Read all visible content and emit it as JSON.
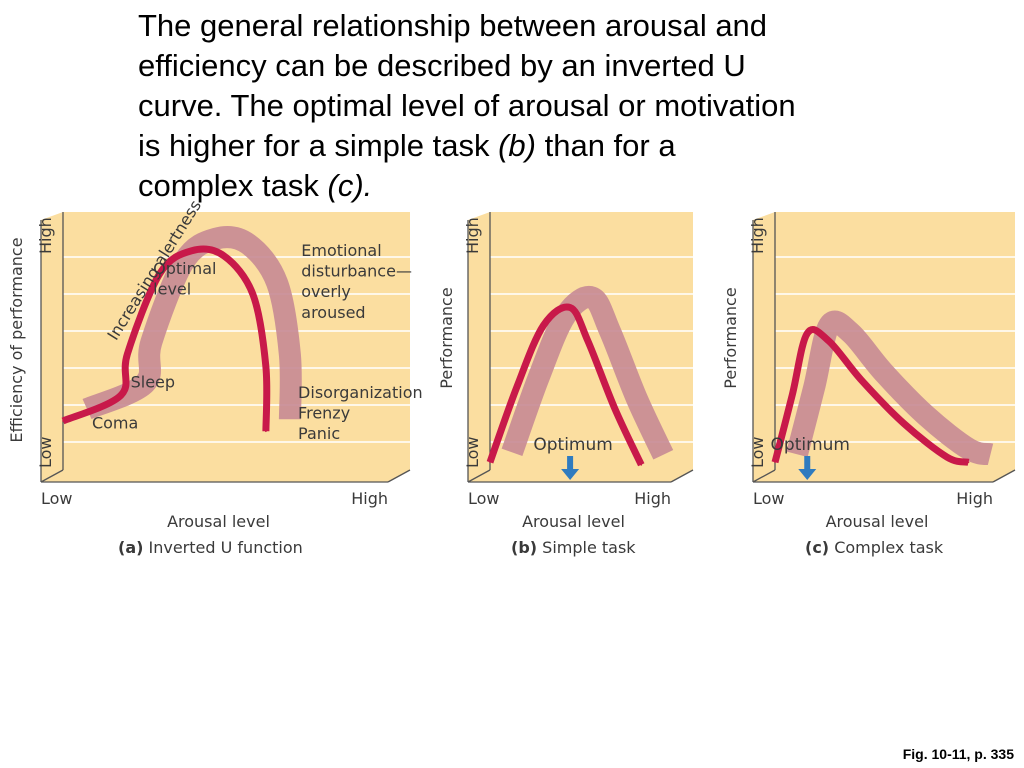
{
  "caption": {
    "part1": "The general relationship between arousal and efficiency can be described by an inverted U curve. The optimal level of arousal or motivation is higher for a simple task ",
    "em1": "(b)",
    "part2": " than for a complex task ",
    "em2": "(c)."
  },
  "figure_ref": "Fig. 10-11, p. 335",
  "colors": {
    "panel": "#fbdea0",
    "curve": "#c8194a",
    "band": "#c68a93",
    "arrow": "#2f7bbf"
  },
  "chart_data": [
    {
      "type": "line",
      "panel_letter": "(a)",
      "panel_title": "Inverted U function",
      "xlabel": "Arousal level",
      "ylabel": "Efficiency of performance",
      "x_tick_labels": [
        "Low",
        "High"
      ],
      "y_tick_labels": [
        "Low",
        "High"
      ],
      "xlim": [
        0,
        10
      ],
      "ylim": [
        0,
        10
      ],
      "grid": true,
      "series": [
        {
          "values": [
            {
              "x": 0.0,
              "y": 1.9
            },
            {
              "x": 1.8,
              "y": 2.9
            },
            {
              "x": 2.0,
              "y": 4.5
            },
            {
              "x": 3.0,
              "y": 7.6
            },
            {
              "x": 4.0,
              "y": 8.5
            },
            {
              "x": 5.0,
              "y": 8.3
            },
            {
              "x": 5.9,
              "y": 6.8
            },
            {
              "x": 6.3,
              "y": 4.0
            },
            {
              "x": 6.3,
              "y": 1.5
            }
          ]
        }
      ],
      "annotations": [
        {
          "text": "Coma",
          "x": 0.9,
          "y": 1.6
        },
        {
          "text": "Sleep",
          "x": 2.1,
          "y": 3.2
        },
        {
          "text": "Optimal",
          "x": 2.8,
          "y": 7.6
        },
        {
          "text": "level",
          "x": 2.8,
          "y": 6.8
        },
        {
          "text": "Increasing alertness",
          "x": 1.9,
          "y": 4.6
        },
        {
          "text": "Emotional",
          "x": 7.4,
          "y": 8.3
        },
        {
          "text": "disturbance—",
          "x": 7.4,
          "y": 7.5
        },
        {
          "text": "overly",
          "x": 7.4,
          "y": 6.7
        },
        {
          "text": "aroused",
          "x": 7.4,
          "y": 5.9
        },
        {
          "text": "Disorganization",
          "x": 7.3,
          "y": 2.8
        },
        {
          "text": "Frenzy",
          "x": 7.3,
          "y": 2.0
        },
        {
          "text": "Panic",
          "x": 7.3,
          "y": 1.2
        }
      ]
    },
    {
      "type": "line",
      "panel_letter": "(b)",
      "panel_title": "Simple task",
      "xlabel": "Arousal level",
      "ylabel": "Performance",
      "x_tick_labels": [
        "Low",
        "High"
      ],
      "y_tick_labels": [
        "Low",
        "High"
      ],
      "xlim": [
        0,
        10
      ],
      "ylim": [
        0,
        10
      ],
      "grid": true,
      "series": [
        {
          "values": [
            {
              "x": 0.0,
              "y": 0.3
            },
            {
              "x": 1.5,
              "y": 3.2
            },
            {
              "x": 3.0,
              "y": 5.6
            },
            {
              "x": 4.5,
              "y": 6.3
            },
            {
              "x": 5.5,
              "y": 5.0
            },
            {
              "x": 7.0,
              "y": 2.4
            },
            {
              "x": 8.5,
              "y": 0.2
            }
          ]
        }
      ],
      "optimum": {
        "label": "Optimum",
        "x": 4.5
      }
    },
    {
      "type": "line",
      "panel_letter": "(c)",
      "panel_title": "Complex task",
      "xlabel": "Arousal level",
      "ylabel": "Performance",
      "x_tick_labels": [
        "Low",
        "High"
      ],
      "y_tick_labels": [
        "Low",
        "High"
      ],
      "xlim": [
        0,
        10
      ],
      "ylim": [
        0,
        10
      ],
      "grid": true,
      "series": [
        {
          "values": [
            {
              "x": 0.0,
              "y": 0.3
            },
            {
              "x": 0.8,
              "y": 2.9
            },
            {
              "x": 1.5,
              "y": 5.3
            },
            {
              "x": 2.5,
              "y": 5.0
            },
            {
              "x": 4.0,
              "y": 3.5
            },
            {
              "x": 6.0,
              "y": 1.8
            },
            {
              "x": 8.0,
              "y": 0.5
            },
            {
              "x": 9.0,
              "y": 0.3
            }
          ]
        }
      ],
      "optimum": {
        "label": "Optimum",
        "x": 1.5
      }
    }
  ]
}
